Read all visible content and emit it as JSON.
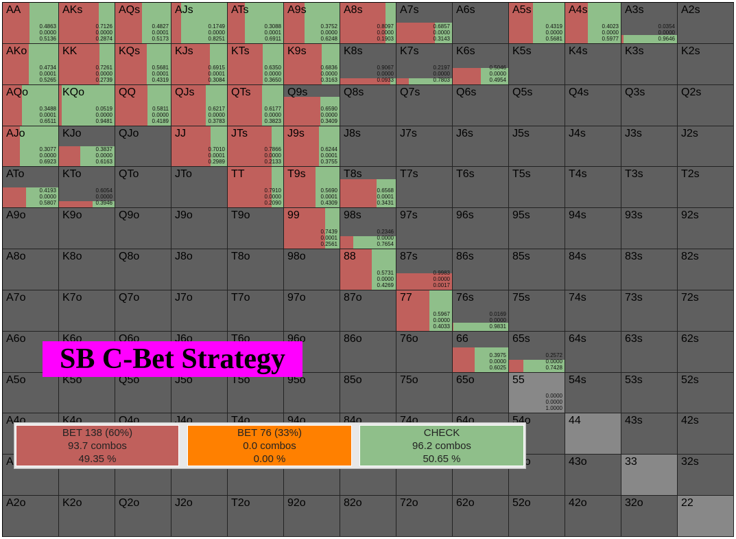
{
  "title": "SB C-Bet Strategy",
  "colors": {
    "bet_large": "#c0605c",
    "bet_small": "#ff8000",
    "check": "#8fbf8a",
    "empty": "#5f5f5f",
    "pair_empty": "#888888"
  },
  "legend": [
    {
      "label": "BET 138 (60%)",
      "combos": "93.7 combos",
      "pct": "49.35 %",
      "color": "#c0605c"
    },
    {
      "label": "BET 76 (33%)",
      "combos": "0.0 combos",
      "pct": "0.00 %",
      "color": "#ff8000"
    },
    {
      "label": "CHECK",
      "combos": "96.2 combos",
      "pct": "50.65 %",
      "color": "#8fbf8a"
    }
  ],
  "ranks": [
    "A",
    "K",
    "Q",
    "J",
    "T",
    "9",
    "8",
    "7",
    "6",
    "5",
    "4",
    "3",
    "2"
  ],
  "strategy": {
    "AA": {
      "frac": 1.0,
      "bet": 0.4863,
      "mid": 0.0,
      "check": 0.5136
    },
    "AKs": {
      "frac": 1.0,
      "bet": 0.7126,
      "mid": 0.0,
      "check": 0.2874
    },
    "AQs": {
      "frac": 1.0,
      "bet": 0.4827,
      "mid": 0.0001,
      "check": 0.5173
    },
    "AJs": {
      "frac": 1.0,
      "bet": 0.1749,
      "mid": 0.0,
      "check": 0.8251
    },
    "ATs": {
      "frac": 1.0,
      "bet": 0.3088,
      "mid": 0.0001,
      "check": 0.6911
    },
    "A9s": {
      "frac": 1.0,
      "bet": 0.3752,
      "mid": 0.0,
      "check": 0.6248
    },
    "A8s": {
      "frac": 1.0,
      "bet": 0.8097,
      "mid": 0.0,
      "check": 0.1903
    },
    "A7s": {
      "frac": 0.5,
      "bet": 0.6857,
      "mid": 0.0,
      "check": 0.3143
    },
    "A5s": {
      "frac": 1.0,
      "bet": 0.4319,
      "mid": 0.0,
      "check": 0.5681
    },
    "A4s": {
      "frac": 1.0,
      "bet": 0.4023,
      "mid": 0.0,
      "check": 0.5977
    },
    "A3s": {
      "frac": 0.2,
      "bet": 0.0354,
      "mid": 0.0,
      "check": 0.9646
    },
    "AKo": {
      "frac": 1.0,
      "bet": 0.4734,
      "mid": 0.0001,
      "check": 0.5265
    },
    "KK": {
      "frac": 1.0,
      "bet": 0.7261,
      "mid": 0.0,
      "check": 0.2739
    },
    "KQs": {
      "frac": 1.0,
      "bet": 0.5681,
      "mid": 0.0001,
      "check": 0.4319
    },
    "KJs": {
      "frac": 1.0,
      "bet": 0.6915,
      "mid": 0.0001,
      "check": 0.3084
    },
    "KTs": {
      "frac": 1.0,
      "bet": 0.635,
      "mid": 0.0,
      "check": 0.365
    },
    "K9s": {
      "frac": 1.0,
      "bet": 0.6836,
      "mid": 0.0,
      "check": 0.3163
    },
    "K8s": {
      "frac": 0.15,
      "bet": 0.9067,
      "mid": 0.0,
      "check": 0.0933
    },
    "K7s": {
      "frac": 0.15,
      "bet": 0.2197,
      "mid": 0.0,
      "check": 0.7803
    },
    "K6s": {
      "frac": 0.4,
      "bet": 0.5046,
      "mid": 0.0,
      "check": 0.4954
    },
    "AQo": {
      "frac": 1.0,
      "bet": 0.3488,
      "mid": 0.0001,
      "check": 0.6511
    },
    "KQo": {
      "frac": 1.0,
      "bet": 0.0519,
      "mid": 0.0,
      "check": 0.9481
    },
    "QQ": {
      "frac": 1.0,
      "bet": 0.5811,
      "mid": 0.0,
      "check": 0.4189
    },
    "QJs": {
      "frac": 1.0,
      "bet": 0.6217,
      "mid": 0.0,
      "check": 0.3783
    },
    "QTs": {
      "frac": 1.0,
      "bet": 0.6177,
      "mid": 0.0,
      "check": 0.3823
    },
    "Q9s": {
      "frac": 0.7,
      "bet": 0.659,
      "mid": 0.0,
      "check": 0.3409
    },
    "AJo": {
      "frac": 1.0,
      "bet": 0.3077,
      "mid": 0.0,
      "check": 0.6923
    },
    "KJo": {
      "frac": 0.5,
      "bet": 0.3837,
      "mid": 0.0,
      "check": 0.6163
    },
    "JJ": {
      "frac": 1.0,
      "bet": 0.701,
      "mid": 0.0001,
      "check": 0.2989
    },
    "JTs": {
      "frac": 1.0,
      "bet": 0.7866,
      "mid": 0.0,
      "check": 0.2133
    },
    "J9s": {
      "frac": 1.0,
      "bet": 0.6244,
      "mid": 0.0001,
      "check": 0.3755
    },
    "ATo": {
      "frac": 0.5,
      "bet": 0.4193,
      "mid": 0.0,
      "check": 0.5807
    },
    "KTo": {
      "frac": 0.15,
      "bet": 0.6054,
      "mid": 0.0,
      "check": 0.3946
    },
    "TT": {
      "frac": 1.0,
      "bet": 0.791,
      "mid": 0.0,
      "check": 0.209
    },
    "T9s": {
      "frac": 1.0,
      "bet": 0.569,
      "mid": 0.0001,
      "check": 0.4309
    },
    "T8s": {
      "frac": 0.7,
      "bet": 0.6568,
      "mid": 0.0001,
      "check": 0.3431
    },
    "99": {
      "frac": 1.0,
      "bet": 0.7439,
      "mid": 0.0001,
      "check": 0.2561
    },
    "98s": {
      "frac": 0.3,
      "bet": 0.2346,
      "mid": 0.0,
      "check": 0.7654
    },
    "88": {
      "frac": 1.0,
      "bet": 0.5731,
      "mid": 0.0,
      "check": 0.4269
    },
    "87s": {
      "frac": 0.4,
      "bet": 0.9983,
      "mid": 0.0,
      "check": 0.0017
    },
    "77": {
      "frac": 1.0,
      "bet": 0.5967,
      "mid": 0.0,
      "check": 0.4033
    },
    "76s": {
      "frac": 0.2,
      "bet": 0.0169,
      "mid": 0.0,
      "check": 0.9831
    },
    "66": {
      "frac": 0.6,
      "bet": 0.3975,
      "mid": 0.0,
      "check": 0.6025
    },
    "65s": {
      "frac": 0.3,
      "bet": 0.2572,
      "mid": 0.0,
      "check": 0.7428
    },
    "55": {
      "frac": 0.0,
      "bet": 0.0,
      "mid": 0.0,
      "check": 1.0
    }
  },
  "pair_empty": [
    "55",
    "44",
    "33",
    "22"
  ]
}
